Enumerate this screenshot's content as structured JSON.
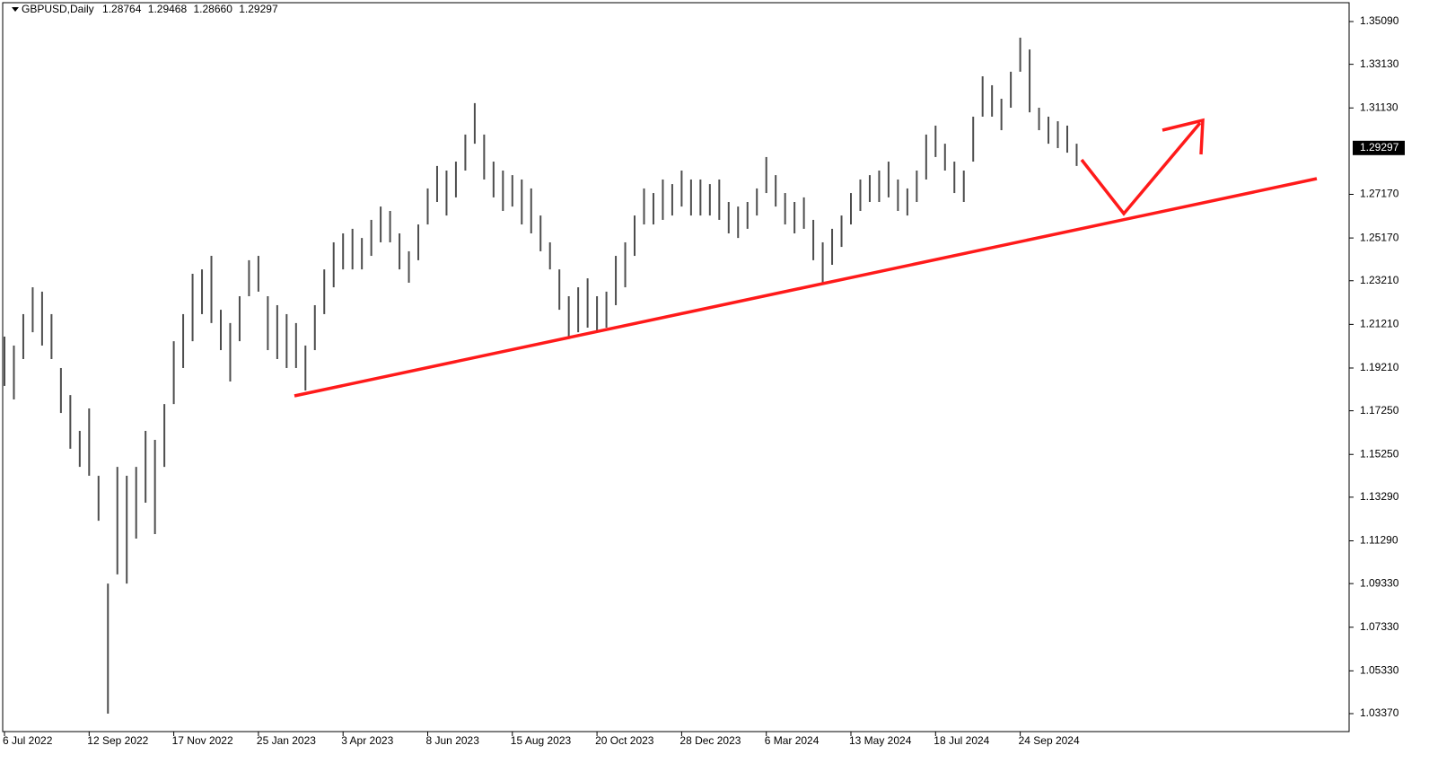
{
  "chart_data": {
    "type": "ohlc",
    "symbol": "GBPUSD,Daily",
    "last_bar": {
      "open": 1.28764,
      "high": 1.29468,
      "low": 1.2866,
      "close": 1.29297
    },
    "last_bar_labels": {
      "open": "1.28764",
      "high": "1.29468",
      "low": "1.28660",
      "close": "1.29297"
    },
    "color": "#4d4d4d",
    "ylim": [
      1.02547,
      1.36077
    ],
    "yticks": [
      {
        "value": 1.3509,
        "label": "1.35090"
      },
      {
        "value": 1.3313,
        "label": "1.33130"
      },
      {
        "value": 1.3113,
        "label": "1.31130"
      },
      {
        "value": 1.2717,
        "label": "1.27170"
      },
      {
        "value": 1.2517,
        "label": "1.25170"
      },
      {
        "value": 1.2321,
        "label": "1.23210"
      },
      {
        "value": 1.2121,
        "label": "1.21210"
      },
      {
        "value": 1.1921,
        "label": "1.19210"
      },
      {
        "value": 1.1725,
        "label": "1.17250"
      },
      {
        "value": 1.1525,
        "label": "1.15250"
      },
      {
        "value": 1.1329,
        "label": "1.13290"
      },
      {
        "value": 1.1129,
        "label": "1.11290"
      },
      {
        "value": 1.0933,
        "label": "1.09330"
      },
      {
        "value": 1.0733,
        "label": "1.07330"
      },
      {
        "value": 1.0533,
        "label": "1.05330"
      },
      {
        "value": 1.0337,
        "label": "1.03370"
      }
    ],
    "categories": [
      "6 Jul 2022",
      null,
      null,
      null,
      null,
      null,
      null,
      null,
      null,
      "12 Sep 2022",
      null,
      null,
      null,
      null,
      null,
      null,
      null,
      null,
      "17 Nov 2022",
      null,
      null,
      null,
      null,
      null,
      null,
      null,
      null,
      "25 Jan 2023",
      null,
      null,
      null,
      null,
      null,
      null,
      null,
      null,
      "3 Apr 2023",
      null,
      null,
      null,
      null,
      null,
      null,
      null,
      null,
      "8 Jun 2023",
      null,
      null,
      null,
      null,
      null,
      null,
      null,
      null,
      "15 Aug 2023",
      null,
      null,
      null,
      null,
      null,
      null,
      null,
      null,
      "20 Oct 2023",
      null,
      null,
      null,
      null,
      null,
      null,
      null,
      null,
      "28 Dec 2023",
      null,
      null,
      null,
      null,
      null,
      null,
      null,
      null,
      "6 Mar 2024",
      null,
      null,
      null,
      null,
      null,
      null,
      null,
      null,
      "13 May 2024",
      null,
      null,
      null,
      null,
      null,
      null,
      null,
      null,
      "18 Jul 2024",
      null,
      null,
      null,
      null,
      null,
      null,
      null,
      null,
      "24 Sep 2024",
      null,
      null,
      null,
      null,
      null,
      null
    ],
    "high": [
      1.2065,
      1.2024,
      1.2168,
      1.2291,
      1.2271,
      1.2168,
      1.1921,
      1.1797,
      1.1633,
      1.1736,
      1.1427,
      1.0933,
      1.1468,
      1.1427,
      1.1468,
      1.1633,
      1.1592,
      1.1756,
      1.2044,
      1.2168,
      1.2353,
      1.2373,
      1.2435,
      1.2188,
      1.2127,
      1.225,
      1.2415,
      1.2435,
      1.225,
      1.2209,
      1.2168,
      1.2127,
      1.2024,
      1.2209,
      1.2373,
      1.2497,
      1.2538,
      1.2559,
      1.2517,
      1.26,
      1.2661,
      1.2641,
      1.2538,
      1.2456,
      1.2579,
      1.2744,
      1.2847,
      1.2826,
      1.2867,
      1.2991,
      1.3135,
      1.2991,
      1.2867,
      1.2826,
      1.2805,
      1.2785,
      1.2744,
      1.262,
      1.2497,
      1.2373,
      1.225,
      1.2291,
      1.2332,
      1.225,
      1.2271,
      1.2435,
      1.2497,
      1.262,
      1.2744,
      1.2723,
      1.2785,
      1.2764,
      1.2826,
      1.2785,
      1.2785,
      1.2764,
      1.2785,
      1.2682,
      1.2661,
      1.2682,
      1.2744,
      1.2888,
      1.2805,
      1.2723,
      1.2682,
      1.2703,
      1.26,
      1.2497,
      1.2559,
      1.262,
      1.2723,
      1.2785,
      1.2805,
      1.2826,
      1.2867,
      1.2785,
      1.2744,
      1.2826,
      1.2991,
      1.3032,
      1.2949,
      1.2867,
      1.2826,
      1.3073,
      1.3258,
      1.3217,
      1.3155,
      1.3279,
      1.3435,
      1.3381,
      1.3114,
      1.3073,
      1.3052,
      1.3032,
      1.2949
    ],
    "low": [
      1.1839,
      1.1777,
      1.1962,
      1.2085,
      1.2024,
      1.1962,
      1.1715,
      1.1551,
      1.1468,
      1.1427,
      1.1221,
      1.0337,
      1.0975,
      1.0933,
      1.1139,
      1.1304,
      1.116,
      1.1468,
      1.1756,
      1.1921,
      1.2044,
      1.2168,
      1.2127,
      1.2003,
      1.1859,
      1.2044,
      1.225,
      1.2271,
      1.2003,
      1.1962,
      1.1921,
      1.1921,
      1.1818,
      1.2003,
      1.2168,
      1.2291,
      1.2373,
      1.2373,
      1.2373,
      1.2435,
      1.2497,
      1.2497,
      1.2373,
      1.2312,
      1.2415,
      1.2579,
      1.2682,
      1.262,
      1.2703,
      1.2826,
      1.2949,
      1.2785,
      1.2703,
      1.2641,
      1.2661,
      1.2579,
      1.2538,
      1.2456,
      1.2373,
      1.2188,
      1.2065,
      1.2085,
      1.2106,
      1.2085,
      1.2106,
      1.2209,
      1.2291,
      1.2435,
      1.2579,
      1.2579,
      1.26,
      1.262,
      1.2661,
      1.262,
      1.262,
      1.262,
      1.26,
      1.2538,
      1.2517,
      1.2559,
      1.262,
      1.2723,
      1.2661,
      1.2579,
      1.2538,
      1.2559,
      1.2415,
      1.2312,
      1.2394,
      1.2476,
      1.2579,
      1.2641,
      1.2682,
      1.2682,
      1.2703,
      1.2641,
      1.262,
      1.2682,
      1.2785,
      1.2888,
      1.2826,
      1.2723,
      1.2682,
      1.2867,
      1.3073,
      1.3073,
      1.3011,
      1.3114,
      1.3279,
      1.3093,
      1.3011,
      1.2949,
      1.2929,
      1.2908,
      1.2847
    ]
  }
}
